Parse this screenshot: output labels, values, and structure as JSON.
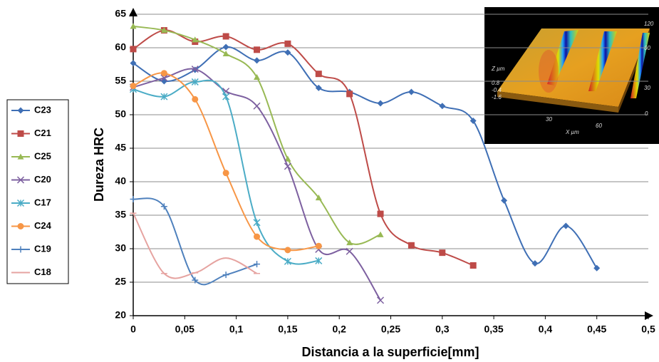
{
  "chart_data": {
    "type": "line",
    "smooth": true,
    "y_label": "Dureza  HRC",
    "x_label": "Distancia a la superficie[mm]",
    "xlim": [
      0,
      0.5
    ],
    "xticks": [
      0,
      {
        "value": 0.05,
        "label": "0,05"
      },
      {
        "value": 0.1,
        "label": "0,1"
      },
      {
        "value": 0.15,
        "label": "0,15"
      },
      {
        "value": 0.2,
        "label": "0,2"
      },
      {
        "value": 0.25,
        "label": "0,25"
      },
      {
        "value": 0.3,
        "label": "0,3"
      },
      {
        "value": 0.35,
        "label": "0,35"
      },
      {
        "value": 0.4,
        "label": "0,4"
      },
      {
        "value": 0.45,
        "label": "0,45"
      },
      {
        "value": 0.5,
        "label": "0,5"
      }
    ],
    "ylim": [
      20,
      65
    ],
    "yticks": [
      20,
      25,
      30,
      35,
      40,
      45,
      50,
      55,
      60,
      65
    ],
    "grid": true,
    "legend": "left",
    "series": [
      {
        "name": "C23",
        "color": "#3f6fb5",
        "marker": "diamond",
        "x": [
          0,
          0.03,
          0.06,
          0.09,
          0.12,
          0.15,
          0.18,
          0.21,
          0.24,
          0.27,
          0.3,
          0.33,
          0.36,
          0.39,
          0.42,
          0.45
        ],
        "values": [
          57.7,
          55,
          56.7,
          60.1,
          58.1,
          59.3,
          54,
          53.4,
          51.7,
          53.4,
          51.3,
          49.1,
          37.2,
          27.8,
          33.4,
          27.1
        ]
      },
      {
        "name": "C21",
        "color": "#be4b48",
        "marker": "square",
        "x": [
          0,
          0.03,
          0.06,
          0.09,
          0.12,
          0.15,
          0.18,
          0.21,
          0.24,
          0.27,
          0.3,
          0.33
        ],
        "values": [
          59.8,
          62.6,
          60.9,
          61.7,
          59.7,
          60.6,
          56.1,
          53.1,
          35.2,
          30.5,
          29.4,
          27.5
        ]
      },
      {
        "name": "C25",
        "color": "#98b954",
        "marker": "triangle",
        "x": [
          0,
          0.03,
          0.06,
          0.09,
          0.12,
          0.15,
          0.18,
          0.21,
          0.24
        ],
        "values": [
          63.2,
          62.6,
          61.2,
          59.1,
          55.6,
          43.4,
          37.6,
          30.9,
          32.1
        ]
      },
      {
        "name": "C20",
        "color": "#7d60a0",
        "marker": "x",
        "x": [
          0,
          0.03,
          0.06,
          0.09,
          0.12,
          0.15,
          0.18,
          0.21,
          0.24
        ],
        "values": [
          54.1,
          55.5,
          56.8,
          53.5,
          51.3,
          42.3,
          29.9,
          29.6,
          22.3
        ]
      },
      {
        "name": "C17",
        "color": "#4bacc6",
        "marker": "star",
        "x": [
          0,
          0.03,
          0.06,
          0.09,
          0.12,
          0.15,
          0.18
        ],
        "values": [
          53.8,
          52.7,
          54.9,
          52.7,
          33.9,
          28.1,
          28.2
        ]
      },
      {
        "name": "C24",
        "color": "#f79646",
        "marker": "circle",
        "x": [
          0,
          0.03,
          0.06,
          0.09,
          0.12,
          0.15,
          0.18
        ],
        "values": [
          54.3,
          56.2,
          52.3,
          41.3,
          31.8,
          29.8,
          30.4
        ]
      },
      {
        "name": "C19",
        "color": "#4f81bd",
        "marker": "plus",
        "x": [
          0,
          0.03,
          0.06,
          0.09,
          0.12
        ],
        "values": [
          37.4,
          36.3,
          25.3,
          26.1,
          27.7
        ]
      },
      {
        "name": "C18",
        "color": "#e6a3a0",
        "marker": "dash",
        "x": [
          0,
          0.03,
          0.06,
          0.09,
          0.12
        ],
        "values": [
          35.3,
          26.3,
          26.4,
          28.6,
          26.3
        ]
      }
    ]
  },
  "inset": {
    "labels": [
      "Z µm",
      "0.8",
      "-0.4",
      "-1.6",
      "30",
      "60",
      "X µm",
      "120",
      "60",
      "30",
      "0"
    ]
  }
}
